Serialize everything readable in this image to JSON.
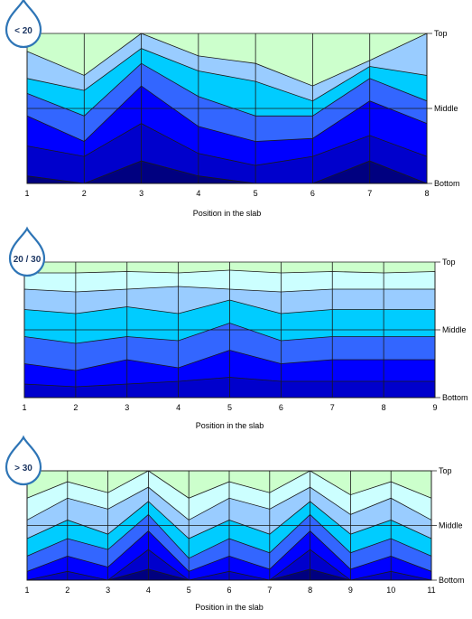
{
  "chart_data": [
    {
      "type": "contour",
      "badge": "< 20",
      "xlabel": "Position  in the slab",
      "x": [
        1,
        2,
        3,
        4,
        5,
        6,
        7,
        8
      ],
      "y_ticks": [
        "Top",
        "Middle",
        "Bottom"
      ],
      "levels": [
        [
          0.12,
          0.28,
          0.0,
          0.15,
          0.2,
          0.35,
          0.18,
          0.0
        ],
        [
          0.3,
          0.38,
          0.1,
          0.25,
          0.32,
          0.45,
          0.22,
          0.28
        ],
        [
          0.4,
          0.55,
          0.2,
          0.42,
          0.55,
          0.55,
          0.3,
          0.45
        ],
        [
          0.55,
          0.72,
          0.35,
          0.62,
          0.72,
          0.7,
          0.45,
          0.6
        ],
        [
          0.75,
          0.82,
          0.6,
          0.8,
          0.88,
          0.82,
          0.68,
          0.82
        ],
        [
          0.95,
          1.0,
          0.85,
          0.95,
          1.0,
          1.0,
          0.85,
          1.0
        ]
      ]
    },
    {
      "type": "contour",
      "badge": "20 / 30",
      "xlabel": "Position  in the slab",
      "x": [
        1,
        2,
        3,
        4,
        5,
        6,
        7,
        8,
        9
      ],
      "y_ticks": [
        "Top",
        "Middle",
        "Bottom"
      ],
      "levels": [
        [
          0.08,
          0.08,
          0.07,
          0.08,
          0.06,
          0.08,
          0.07,
          0.08,
          0.07
        ],
        [
          0.2,
          0.22,
          0.2,
          0.18,
          0.2,
          0.22,
          0.2,
          0.2,
          0.2
        ],
        [
          0.35,
          0.38,
          0.33,
          0.38,
          0.28,
          0.38,
          0.35,
          0.35,
          0.35
        ],
        [
          0.55,
          0.6,
          0.55,
          0.58,
          0.45,
          0.58,
          0.55,
          0.55,
          0.55
        ],
        [
          0.75,
          0.8,
          0.72,
          0.78,
          0.65,
          0.75,
          0.72,
          0.72,
          0.72
        ],
        [
          0.9,
          0.92,
          0.9,
          0.88,
          0.85,
          0.88,
          0.88,
          0.88,
          0.88
        ],
        [
          1.0,
          1.0,
          1.0,
          1.0,
          1.0,
          1.0,
          1.0,
          1.0,
          1.0
        ]
      ]
    },
    {
      "type": "contour",
      "badge": "> 30",
      "xlabel": "Position  in the slab",
      "x": [
        1,
        2,
        3,
        4,
        5,
        6,
        7,
        8,
        9,
        10,
        11
      ],
      "y_ticks": [
        "Top",
        "Middle",
        "Bottom"
      ],
      "levels": [
        [
          0.0,
          0.0,
          0.0,
          0.0,
          0.0,
          0.0,
          0.0,
          0.0,
          0.0,
          0.0,
          0.0
        ],
        [
          0.25,
          0.1,
          0.2,
          0.0,
          0.25,
          0.1,
          0.2,
          0.0,
          0.22,
          0.1,
          0.25
        ],
        [
          0.45,
          0.25,
          0.35,
          0.15,
          0.45,
          0.25,
          0.35,
          0.15,
          0.4,
          0.25,
          0.45
        ],
        [
          0.62,
          0.45,
          0.58,
          0.28,
          0.62,
          0.45,
          0.58,
          0.28,
          0.58,
          0.45,
          0.62
        ],
        [
          0.78,
          0.62,
          0.72,
          0.4,
          0.8,
          0.62,
          0.75,
          0.4,
          0.75,
          0.62,
          0.78
        ],
        [
          0.92,
          0.78,
          0.88,
          0.55,
          0.92,
          0.78,
          0.9,
          0.55,
          0.9,
          0.78,
          0.92
        ],
        [
          1.0,
          0.92,
          1.0,
          0.72,
          1.0,
          0.92,
          1.0,
          0.72,
          1.0,
          0.92,
          1.0
        ],
        [
          1.0,
          1.0,
          1.0,
          0.9,
          1.0,
          1.0,
          1.0,
          0.9,
          1.0,
          1.0,
          1.0
        ]
      ]
    }
  ],
  "colors": [
    "#ccffcc",
    "#ccffff",
    "#99ccff",
    "#00ccff",
    "#3366ff",
    "#0000ff",
    "#0000cc",
    "#000080"
  ]
}
